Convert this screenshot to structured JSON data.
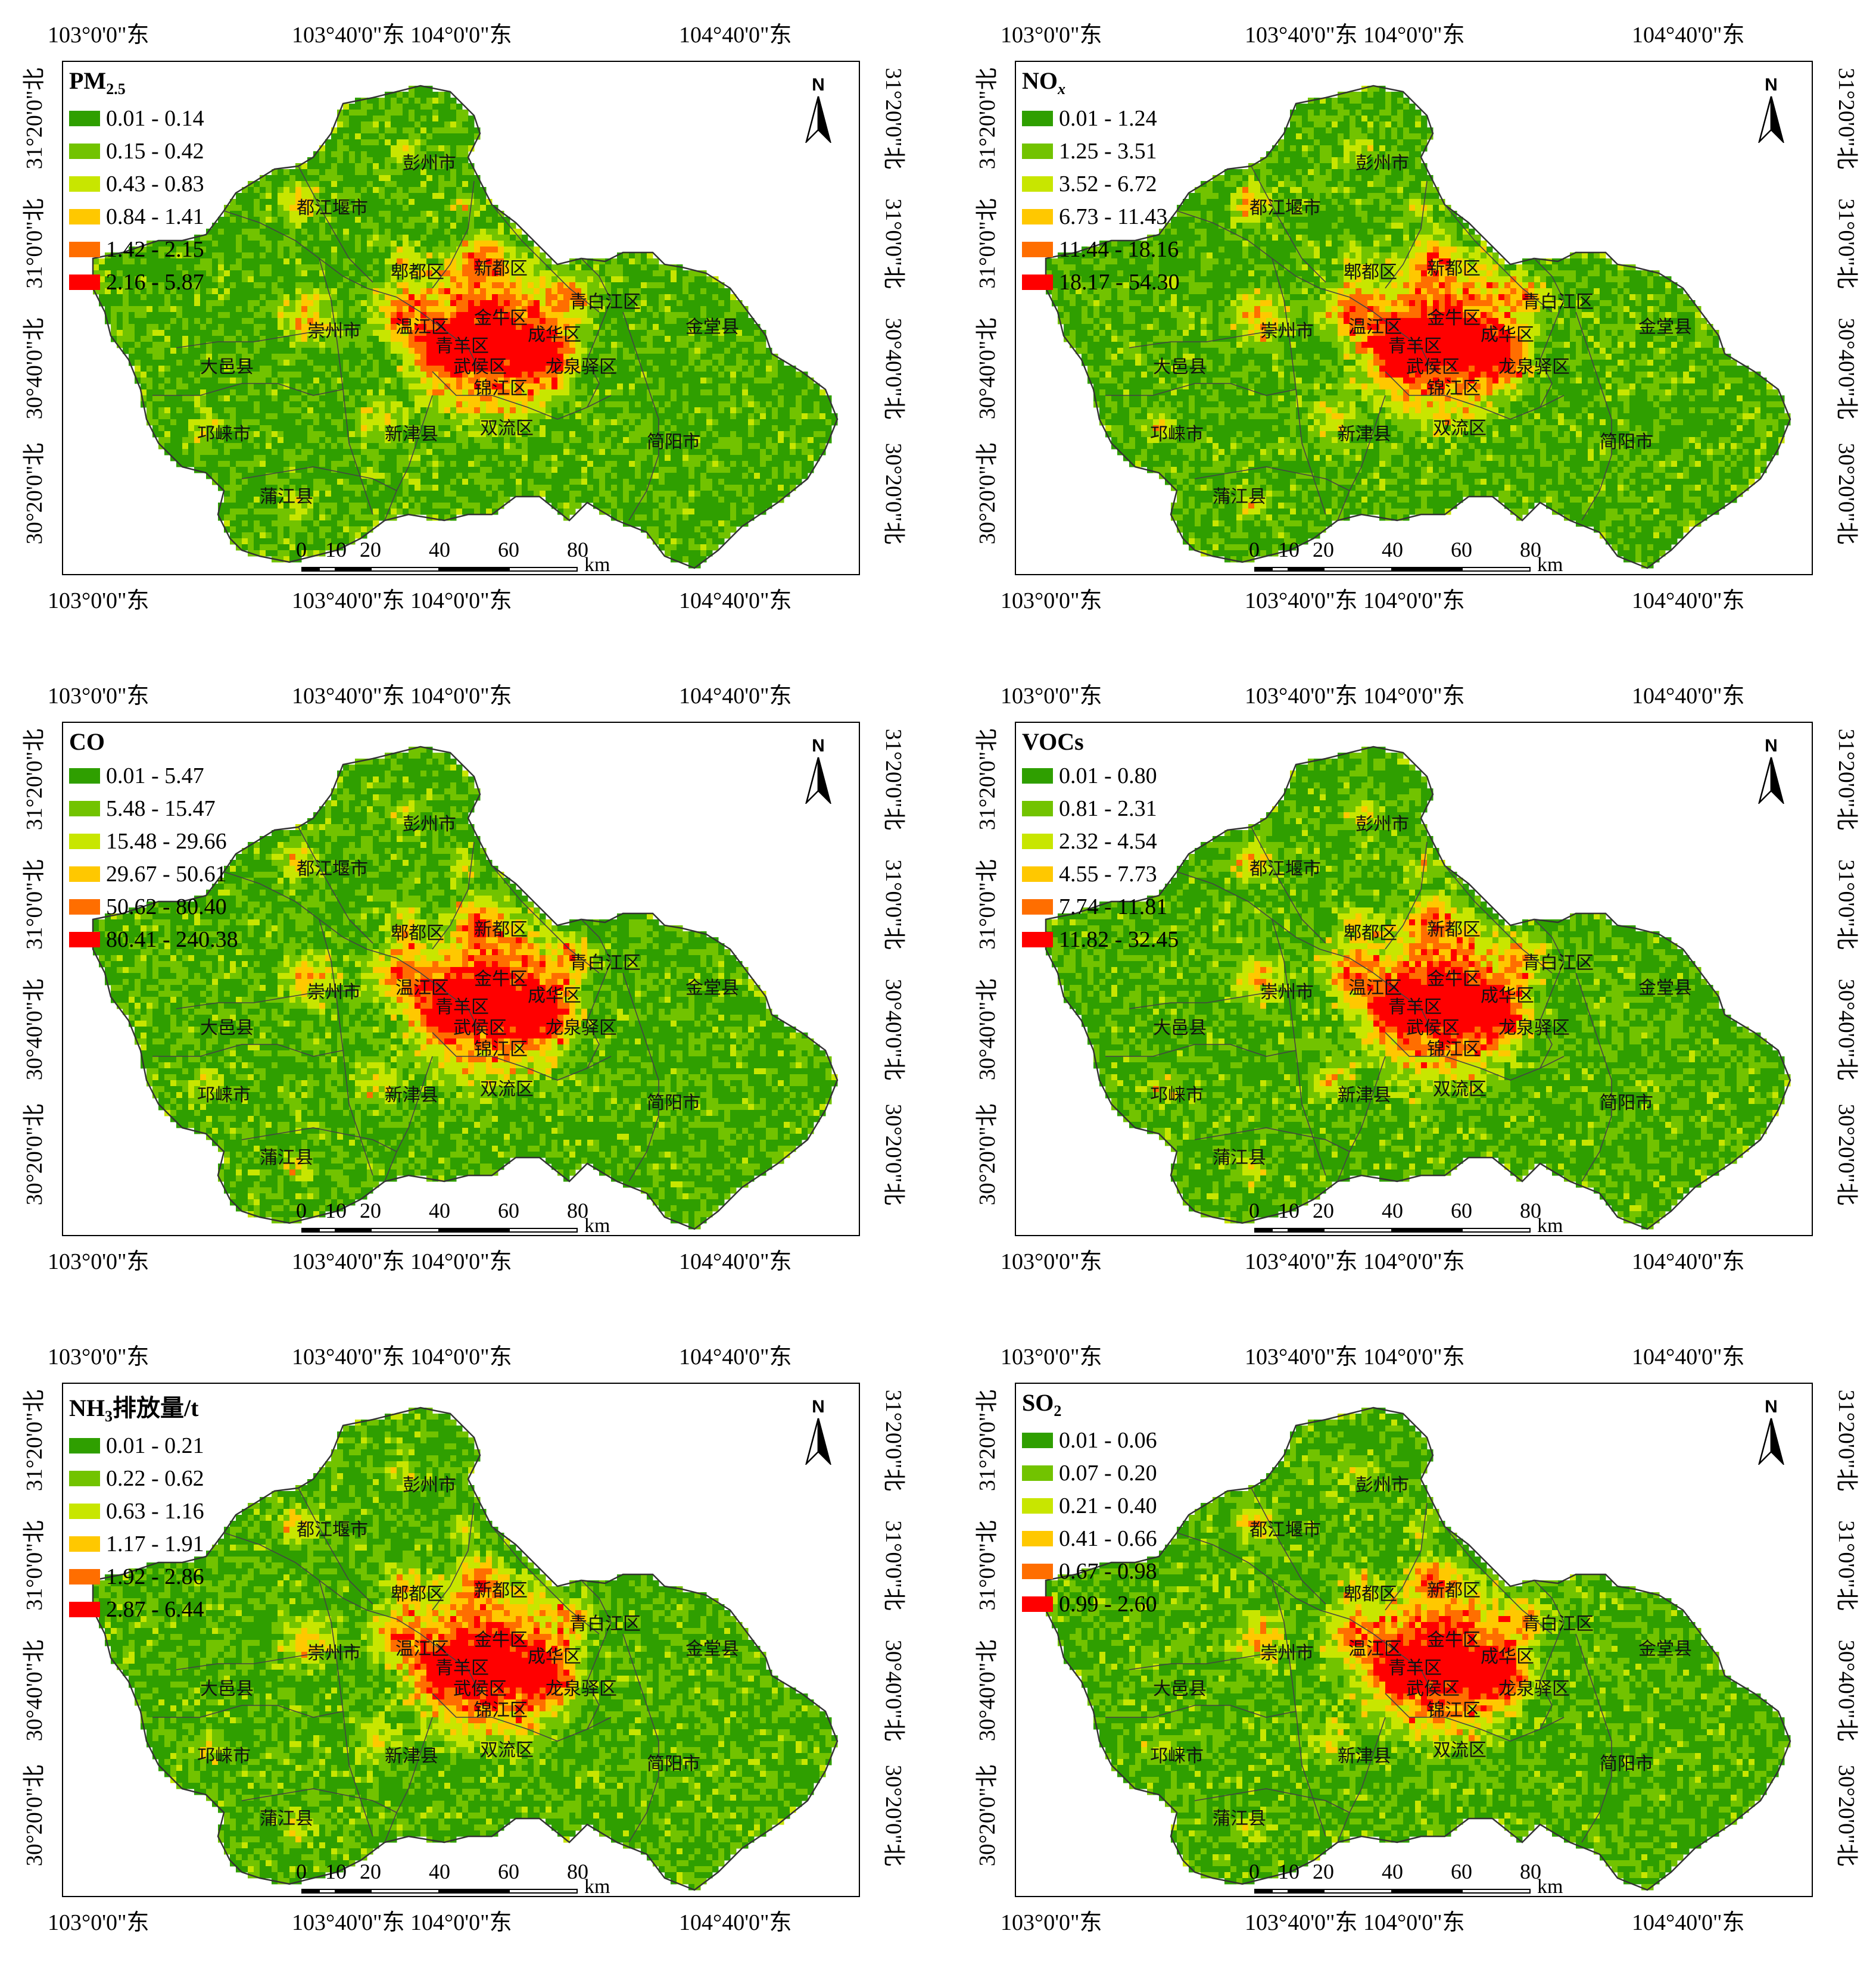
{
  "coords": {
    "top": [
      "103°0'0\"东",
      "103°40'0\"东 104°0'0\"东",
      "104°40'0\"东"
    ],
    "bottom": [
      "103°0'0\"东",
      "103°40'0\"东 104°0'0\"东",
      "104°40'0\"东"
    ],
    "left": [
      "31°20'0\"北",
      "31°0'0\"北",
      "30°40'0\"北",
      "30°20'0\"北"
    ],
    "right": [
      "31°20'0\"北",
      "31°0'0\"北",
      "30°40'0\"北",
      "30°20'0\"北"
    ]
  },
  "north_label": "N",
  "scale": {
    "ticks": [
      "0",
      "10",
      "20",
      "40",
      "60",
      "80"
    ],
    "unit": "km"
  },
  "places": [
    {
      "name": "彭州市"
    },
    {
      "name": "都江堰市"
    },
    {
      "name": "郫都区"
    },
    {
      "name": "新都区"
    },
    {
      "name": "青白江区"
    },
    {
      "name": "金堂县"
    },
    {
      "name": "崇州市"
    },
    {
      "name": "温江区"
    },
    {
      "name": "金牛区"
    },
    {
      "name": "成华区"
    },
    {
      "name": "青羊区"
    },
    {
      "name": "大邑县"
    },
    {
      "name": "武侯区"
    },
    {
      "name": "锦江区"
    },
    {
      "name": "龙泉驿区"
    },
    {
      "name": "双流区"
    },
    {
      "name": "邛崃市"
    },
    {
      "name": "新津县"
    },
    {
      "name": "简阳市"
    },
    {
      "name": "蒲江县"
    }
  ],
  "legend_colors": [
    "#2f9f00",
    "#72c300",
    "#c8e600",
    "#ffc800",
    "#ff6e00",
    "#ff0000"
  ],
  "panels": [
    {
      "title_main": "PM",
      "title_sub": "2.5",
      "title_suffix": "",
      "classes": [
        "0.01 - 0.14",
        "0.15 - 0.42",
        "0.43 - 0.83",
        "0.84 - 1.41",
        "1.42 - 2.15",
        "2.16 - 5.87"
      ]
    },
    {
      "title_main": "NO",
      "title_sub": "x",
      "title_suffix": "",
      "classes": [
        "0.01 - 1.24",
        "1.25 - 3.51",
        "3.52 - 6.72",
        "6.73 - 11.43",
        "11.44 - 18.16",
        "18.17 - 54.30"
      ]
    },
    {
      "title_main": "CO",
      "title_sub": "",
      "title_suffix": "",
      "classes": [
        "0.01 - 5.47",
        "5.48 - 15.47",
        "15.48 - 29.66",
        "29.67 - 50.61",
        "50.62 - 80.40",
        "80.41 - 240.38"
      ]
    },
    {
      "title_main": "VOCs",
      "title_sub": "",
      "title_suffix": "",
      "classes": [
        "0.01 - 0.80",
        "0.81 - 2.31",
        "2.32 - 4.54",
        "4.55 - 7.73",
        "7.74 - 11.81",
        "11.82 - 32.45"
      ]
    },
    {
      "title_main": "NH",
      "title_sub": "3",
      "title_suffix": "排放量/t",
      "classes": [
        "0.01 - 0.21",
        "0.22 - 0.62",
        "0.63 - 1.16",
        "1.17 - 1.91",
        "1.92 - 2.86",
        "2.87 - 6.44"
      ]
    },
    {
      "title_main": "SO",
      "title_sub": "2",
      "title_suffix": "",
      "classes": [
        "0.01 - 0.06",
        "0.07 - 0.20",
        "0.21 - 0.40",
        "0.41 - 0.66",
        "0.67 - 0.98",
        "0.99 - 2.60"
      ]
    }
  ]
}
